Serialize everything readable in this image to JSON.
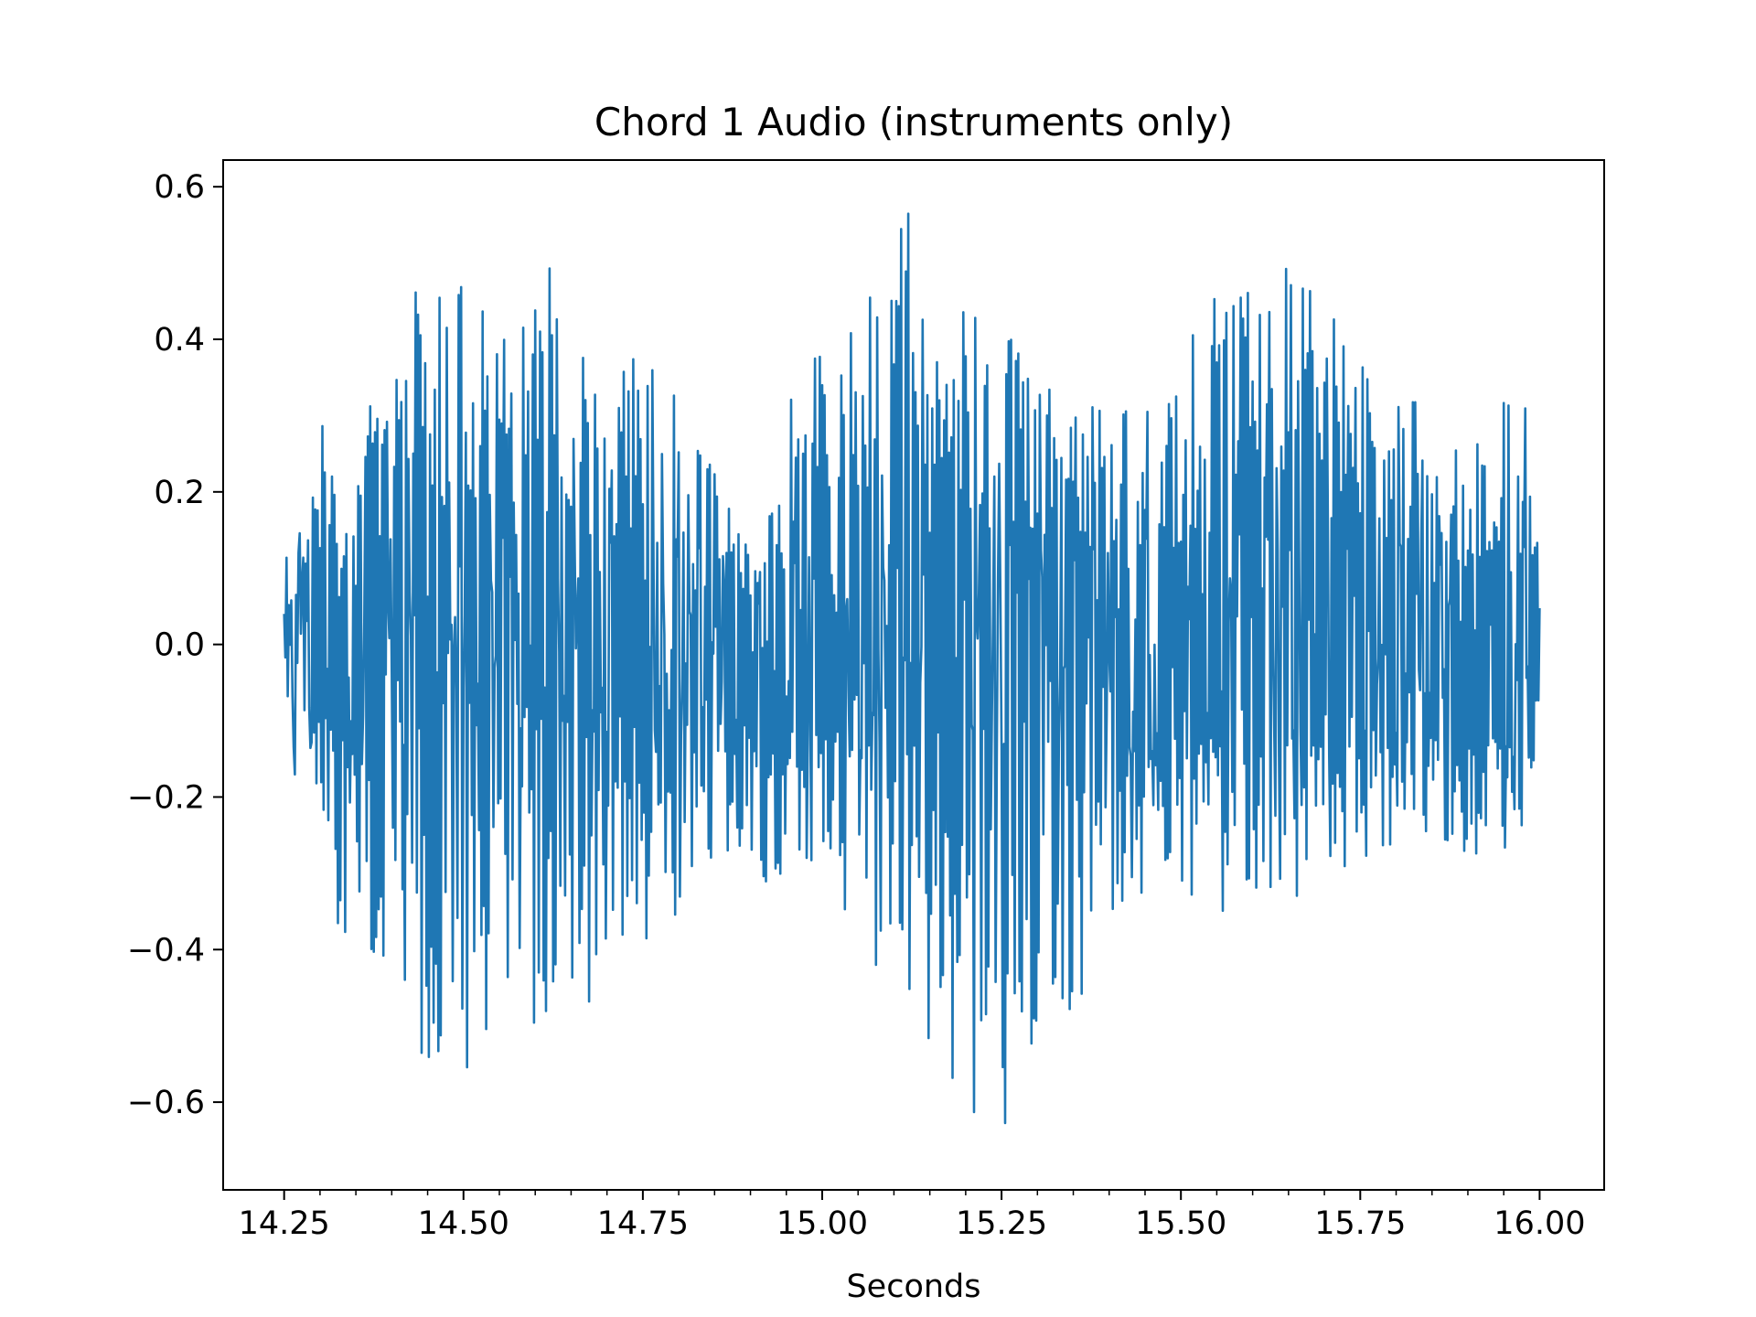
{
  "chart_data": {
    "type": "line",
    "title": "Chord 1 Audio (instruments only)",
    "xlabel": "Seconds",
    "ylabel": "",
    "xlim": [
      14.165,
      16.09
    ],
    "ylim": [
      -0.715,
      0.635
    ],
    "x_ticks": [
      14.25,
      14.5,
      14.75,
      15.0,
      15.25,
      15.5,
      15.75,
      16.0
    ],
    "x_tick_labels": [
      "14.25",
      "14.50",
      "14.75",
      "15.00",
      "15.25",
      "15.50",
      "15.75",
      "16.00"
    ],
    "x_minor_step": 0.05,
    "y_ticks": [
      -0.6,
      -0.4,
      -0.2,
      0.0,
      0.2,
      0.4,
      0.6
    ],
    "y_tick_labels": [
      "−0.6",
      "−0.4",
      "−0.2",
      "0.0",
      "0.2",
      "0.4",
      "0.6"
    ],
    "grid": false,
    "legend": "none",
    "series": [
      {
        "color": "#1f77b4",
        "sample_step": 0.005,
        "x_start": 14.25,
        "x_end": 16.0,
        "upper_envelope": [
          [
            14.25,
            0.06
          ],
          [
            14.27,
            0.17
          ],
          [
            14.3,
            0.29
          ],
          [
            14.33,
            0.31
          ],
          [
            14.36,
            0.38
          ],
          [
            14.38,
            0.42
          ],
          [
            14.4,
            0.46
          ],
          [
            14.43,
            0.5
          ],
          [
            14.48,
            0.47
          ],
          [
            14.53,
            0.47
          ],
          [
            14.58,
            0.45
          ],
          [
            14.63,
            0.51
          ],
          [
            14.68,
            0.36
          ],
          [
            14.73,
            0.42
          ],
          [
            14.78,
            0.35
          ],
          [
            14.83,
            0.27
          ],
          [
            14.88,
            0.18
          ],
          [
            14.92,
            0.18
          ],
          [
            14.97,
            0.38
          ],
          [
            15.02,
            0.41
          ],
          [
            15.06,
            0.48
          ],
          [
            15.09,
            0.54
          ],
          [
            15.12,
            0.57
          ],
          [
            15.16,
            0.52
          ],
          [
            15.2,
            0.44
          ],
          [
            15.25,
            0.41
          ],
          [
            15.3,
            0.4
          ],
          [
            15.35,
            0.33
          ],
          [
            15.4,
            0.3
          ],
          [
            15.45,
            0.33
          ],
          [
            15.5,
            0.38
          ],
          [
            15.55,
            0.5
          ],
          [
            15.6,
            0.5
          ],
          [
            15.65,
            0.5
          ],
          [
            15.7,
            0.44
          ],
          [
            15.75,
            0.39
          ],
          [
            15.8,
            0.36
          ],
          [
            15.85,
            0.29
          ],
          [
            15.9,
            0.25
          ],
          [
            15.95,
            0.36
          ],
          [
            15.99,
            0.3
          ],
          [
            16.0,
            0.1
          ]
        ],
        "lower_envelope": [
          [
            14.25,
            -0.05
          ],
          [
            14.27,
            -0.22
          ],
          [
            14.3,
            -0.2
          ],
          [
            14.33,
            -0.43
          ],
          [
            14.36,
            -0.39
          ],
          [
            14.4,
            -0.51
          ],
          [
            14.43,
            -0.54
          ],
          [
            14.46,
            -0.56
          ],
          [
            14.5,
            -0.57
          ],
          [
            14.53,
            -0.59
          ],
          [
            14.58,
            -0.52
          ],
          [
            14.63,
            -0.5
          ],
          [
            14.68,
            -0.47
          ],
          [
            14.73,
            -0.43
          ],
          [
            14.78,
            -0.38
          ],
          [
            14.83,
            -0.31
          ],
          [
            14.88,
            -0.28
          ],
          [
            14.93,
            -0.34
          ],
          [
            14.98,
            -0.33
          ],
          [
            15.03,
            -0.36
          ],
          [
            15.08,
            -0.44
          ],
          [
            15.13,
            -0.48
          ],
          [
            15.18,
            -0.59
          ],
          [
            15.22,
            -0.66
          ],
          [
            15.25,
            -0.65
          ],
          [
            15.28,
            -0.62
          ],
          [
            15.32,
            -0.52
          ],
          [
            15.36,
            -0.48
          ],
          [
            15.4,
            -0.4
          ],
          [
            15.45,
            -0.32
          ],
          [
            15.5,
            -0.32
          ],
          [
            15.55,
            -0.35
          ],
          [
            15.6,
            -0.36
          ],
          [
            15.65,
            -0.35
          ],
          [
            15.7,
            -0.3
          ],
          [
            15.75,
            -0.3
          ],
          [
            15.8,
            -0.26
          ],
          [
            15.85,
            -0.26
          ],
          [
            15.9,
            -0.3
          ],
          [
            15.95,
            -0.27
          ],
          [
            15.99,
            -0.22
          ],
          [
            16.0,
            -0.05
          ]
        ]
      }
    ]
  }
}
